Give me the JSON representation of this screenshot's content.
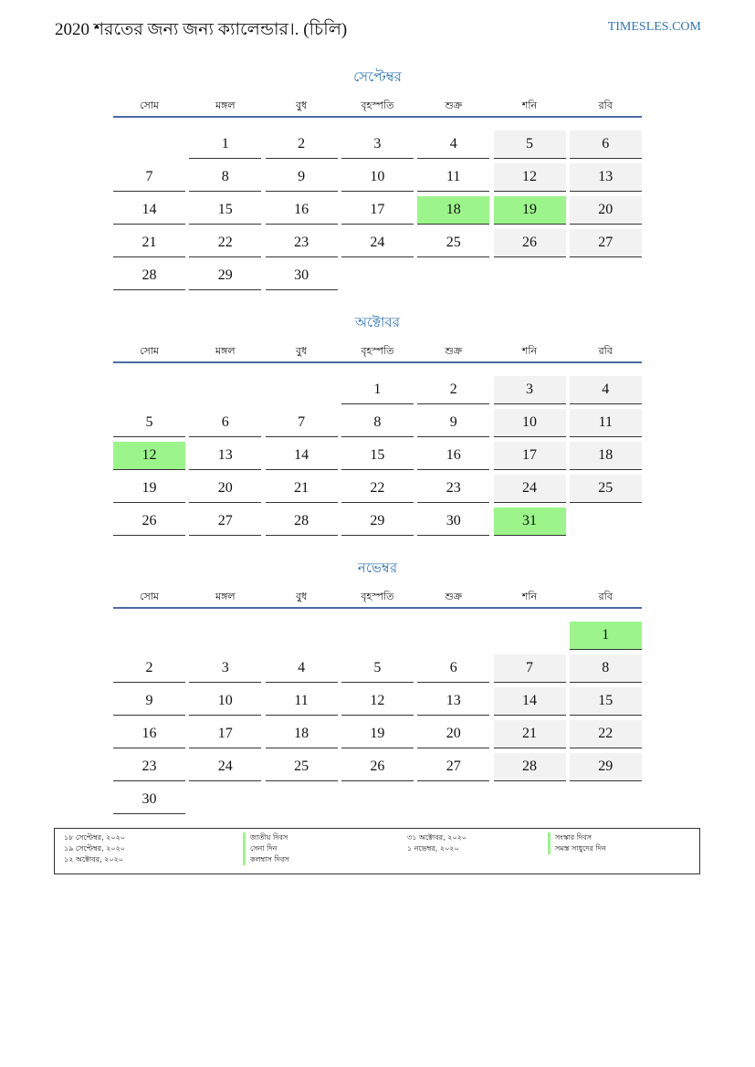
{
  "header": {
    "title": "2020 শরতের জন্য জন্য ক্যালেন্ডার।. (চিলি)",
    "site": "TIMESLES.COM"
  },
  "weekdays": [
    "সোম",
    "মঙ্গল",
    "বুধ",
    "বৃহস্পতি",
    "শুক্র",
    "শনি",
    "রবি"
  ],
  "colors": {
    "accent": "#2e75b6",
    "rule": "#4a6aa5",
    "weekend": "#f2f2f2",
    "holiday": "#9cf58a"
  },
  "months": [
    {
      "name": "সেপ্টেম্বর",
      "start_offset": 1,
      "days": 30,
      "holidays": [
        18,
        19
      ]
    },
    {
      "name": "অক্টোবর",
      "start_offset": 3,
      "days": 31,
      "holidays": [
        12,
        31
      ]
    },
    {
      "name": "নভেম্বর",
      "start_offset": 6,
      "days": 30,
      "holidays": [
        1
      ]
    }
  ],
  "legend": [
    {
      "date": "১৮ সেপ্টেম্বর, ২০২০",
      "name": "জাতীয় দিবস"
    },
    {
      "date": "১৯ সেপ্টেম্বর, ২০২০",
      "name": "সেনা দিন"
    },
    {
      "date": "১২ অক্টোবর, ২০২০",
      "name": "কলম্বাস দিবস"
    },
    {
      "date": "৩১ অক্টোবর, ২০২০",
      "name": "সংস্কার দিবস"
    },
    {
      "date": "১ নভেম্বর, ২০২০",
      "name": "সমস্ত সাধুদের দিন"
    }
  ]
}
